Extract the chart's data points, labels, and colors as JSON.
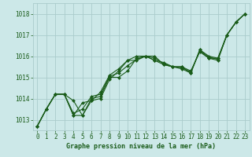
{
  "bg_color": "#cce8e8",
  "grid_color": "#aacccc",
  "line_color": "#1a5c1a",
  "marker_color": "#1a5c1a",
  "xlabel": "Graphe pression niveau de la mer (hPa)",
  "xlabel_color": "#1a5c1a",
  "ylabel_ticks": [
    1013,
    1014,
    1015,
    1016,
    1017,
    1018
  ],
  "xlim": [
    -0.5,
    23.5
  ],
  "ylim": [
    1012.5,
    1018.5
  ],
  "series": [
    [
      1012.7,
      1013.5,
      1014.2,
      1014.2,
      1013.9,
      1013.2,
      1013.9,
      1014.0,
      1014.9,
      1015.3,
      1015.8,
      1016.0,
      1016.0,
      1015.8,
      1015.7,
      1015.5,
      1015.5,
      1015.2,
      1016.3,
      1016.0,
      1015.9,
      1017.0,
      1017.6,
      1018.0
    ],
    [
      1012.7,
      1013.5,
      1014.2,
      1014.2,
      1013.2,
      1013.2,
      1014.0,
      1014.1,
      1015.0,
      1015.0,
      1015.3,
      1015.9,
      1016.0,
      1016.0,
      1015.6,
      1015.5,
      1015.5,
      1015.3,
      1016.2,
      1015.9,
      1015.8,
      1017.0,
      1017.6,
      1018.0
    ],
    [
      1012.7,
      1013.5,
      1014.2,
      1014.2,
      1013.2,
      1013.8,
      1013.9,
      1014.3,
      1015.1,
      1015.4,
      1015.8,
      1015.8,
      1016.0,
      1015.8,
      1015.6,
      1015.5,
      1015.4,
      1015.2,
      1016.3,
      1015.9,
      1015.9,
      1017.0,
      1017.6,
      1018.0
    ],
    [
      1012.7,
      1013.5,
      1014.2,
      1014.2,
      1013.3,
      1013.5,
      1014.1,
      1014.2,
      1015.05,
      1015.2,
      1015.55,
      1015.85,
      1016.0,
      1015.9,
      1015.65,
      1015.5,
      1015.45,
      1015.25,
      1016.25,
      1015.95,
      1015.85,
      1017.0,
      1017.6,
      1018.0
    ]
  ],
  "tick_fontsize": 5.5,
  "xlabel_fontsize": 6.0
}
